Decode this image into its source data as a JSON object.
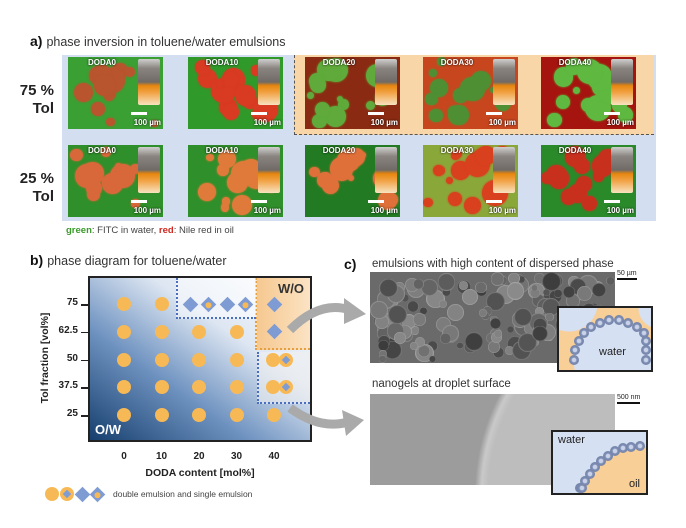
{
  "panel_a": {
    "label": "a)",
    "title": "phase inversion in toluene/water emulsions",
    "rows": [
      {
        "label_line1": "75 %",
        "label_line2": "Tol",
        "images": [
          {
            "label": "DODA0",
            "scale": "100 µm",
            "bg": "#3aa033",
            "drop": "#b8552e"
          },
          {
            "label": "DODA10",
            "scale": "100 µm",
            "bg": "#2f9a2a",
            "drop": "#d83a22"
          },
          {
            "label": "DODA20",
            "scale": "100 µm",
            "bg": "#8a2a12",
            "drop": "#5faa3a"
          },
          {
            "label": "DODA30",
            "scale": "100 µm",
            "bg": "#c8461e",
            "drop": "#4f8f34"
          },
          {
            "label": "DODA40",
            "scale": "100 µm",
            "bg": "#a5140e",
            "drop": "#5fb840"
          }
        ]
      },
      {
        "label_line1": "25 %",
        "label_line2": "Tol",
        "images": [
          {
            "label": "DODA0",
            "scale": "100 µm",
            "bg": "#2f8f2a",
            "drop": "#d8683a"
          },
          {
            "label": "DODA10",
            "scale": "100 µm",
            "bg": "#2f8f2a",
            "drop": "#e07a3a"
          },
          {
            "label": "DODA20",
            "scale": "100 µm",
            "bg": "#227a22",
            "drop": "#e0703a"
          },
          {
            "label": "DODA30",
            "scale": "100 µm",
            "bg": "#8aa83a",
            "drop": "#d8401e"
          },
          {
            "label": "DODA40",
            "scale": "100 µm",
            "bg": "#2a8a2a",
            "drop": "#c8301e"
          }
        ]
      }
    ],
    "caption_green": "green",
    "caption_mid": ": FITC in water, ",
    "caption_red": "red",
    "caption_end": ": Nile red in oil",
    "colors": {
      "panel_bg": "#d3dff0",
      "inverted_bg": "#f8d6a8",
      "green_text": "#3a9a2a",
      "red_text": "#d0281e"
    }
  },
  "chart_data": {
    "type": "scatter",
    "title": "phase diagram for toluene/water",
    "label": "b)",
    "xlabel": "DODA content [mol%]",
    "ylabel": "Tol fraction [vol%]",
    "xticks": [
      "0",
      "10",
      "20",
      "30",
      "40"
    ],
    "yticks": [
      "75",
      "62.5",
      "50",
      "37.5",
      "25"
    ],
    "xlim": [
      -7,
      50
    ],
    "ylim": [
      12,
      88
    ],
    "region_labels": {
      "top_right": "W/O",
      "bottom_left": "O/W"
    },
    "points": [
      {
        "x": 0,
        "y": 75,
        "marker": "circle"
      },
      {
        "x": 10,
        "y": 75,
        "marker": "circle"
      },
      {
        "x": 20,
        "y": 75,
        "marker": "diamond"
      },
      {
        "x": 20,
        "y": 75,
        "marker": "diamond-in-circle"
      },
      {
        "x": 30,
        "y": 75,
        "marker": "diamond"
      },
      {
        "x": 30,
        "y": 75,
        "marker": "diamond-in-circle"
      },
      {
        "x": 40,
        "y": 75,
        "marker": "diamond"
      },
      {
        "x": 0,
        "y": 62.5,
        "marker": "circle"
      },
      {
        "x": 10,
        "y": 62.5,
        "marker": "circle"
      },
      {
        "x": 20,
        "y": 62.5,
        "marker": "circle"
      },
      {
        "x": 30,
        "y": 62.5,
        "marker": "circle"
      },
      {
        "x": 40,
        "y": 62.5,
        "marker": "diamond"
      },
      {
        "x": 0,
        "y": 50,
        "marker": "circle"
      },
      {
        "x": 10,
        "y": 50,
        "marker": "circle"
      },
      {
        "x": 20,
        "y": 50,
        "marker": "circle"
      },
      {
        "x": 30,
        "y": 50,
        "marker": "circle"
      },
      {
        "x": 40,
        "y": 50,
        "marker": "circle"
      },
      {
        "x": 40,
        "y": 50,
        "marker": "circle-with-diamond"
      },
      {
        "x": 0,
        "y": 37.5,
        "marker": "circle"
      },
      {
        "x": 10,
        "y": 37.5,
        "marker": "circle"
      },
      {
        "x": 20,
        "y": 37.5,
        "marker": "circle"
      },
      {
        "x": 30,
        "y": 37.5,
        "marker": "circle"
      },
      {
        "x": 40,
        "y": 37.5,
        "marker": "circle"
      },
      {
        "x": 40,
        "y": 37.5,
        "marker": "circle-with-diamond"
      },
      {
        "x": 0,
        "y": 25,
        "marker": "circle"
      },
      {
        "x": 10,
        "y": 25,
        "marker": "circle"
      },
      {
        "x": 20,
        "y": 25,
        "marker": "circle"
      },
      {
        "x": 30,
        "y": 25,
        "marker": "circle"
      },
      {
        "x": 40,
        "y": 25,
        "marker": "circle"
      }
    ],
    "legend_text": "double emulsion and single emulsion",
    "legend_placement": "bottom",
    "colors": {
      "circle": "#f7b955",
      "diamond": "#7f9bd3",
      "bg_dark": "#1f4a82",
      "orange_region": "#f6c890"
    }
  },
  "panel_c": {
    "label": "c)",
    "top": {
      "title": "emulsions with high content of dispersed phase",
      "scale": "50 µm",
      "inset_label": "water"
    },
    "bottom": {
      "title": "nanogels at droplet surface",
      "scale": "500 nm",
      "inset_water": "water",
      "inset_oil": "oil"
    }
  }
}
